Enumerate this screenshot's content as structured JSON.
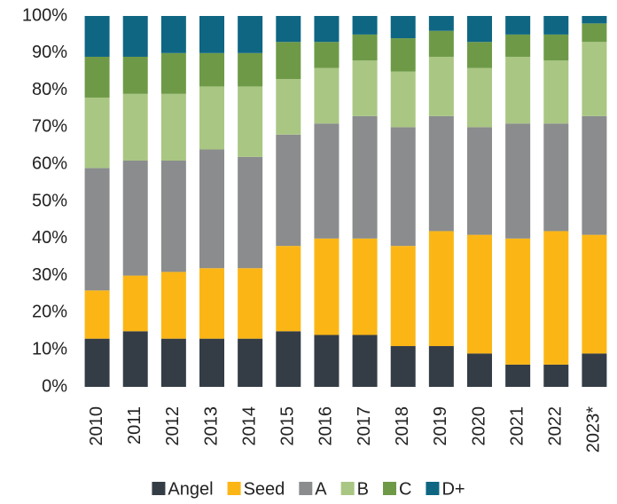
{
  "chart_data": {
    "type": "stacked_bar_100",
    "categories": [
      "2010",
      "2011",
      "2012",
      "2013",
      "2014",
      "2015",
      "2016",
      "2017",
      "2018",
      "2019",
      "2020",
      "2021",
      "2022",
      "2023*"
    ],
    "series": [
      {
        "name": "Angel",
        "color": "#343d46",
        "values": [
          13,
          15,
          13,
          13,
          13,
          15,
          14,
          14,
          11,
          11,
          9,
          6,
          6,
          9
        ]
      },
      {
        "name": "Seed",
        "color": "#fbb616",
        "values": [
          13,
          15,
          18,
          19,
          19,
          23,
          26,
          26,
          27,
          31,
          32,
          34,
          36,
          32
        ]
      },
      {
        "name": "A",
        "color": "#8a8c8d",
        "values": [
          33,
          31,
          30,
          32,
          30,
          30,
          31,
          33,
          32,
          31,
          29,
          31,
          29,
          32
        ]
      },
      {
        "name": "B",
        "color": "#a9c683",
        "values": [
          19,
          18,
          18,
          17,
          19,
          15,
          15,
          15,
          15,
          16,
          16,
          18,
          17,
          20
        ]
      },
      {
        "name": "C",
        "color": "#6e9a47",
        "values": [
          11,
          10,
          11,
          9,
          9,
          10,
          7,
          7,
          9,
          7,
          7,
          6,
          7,
          5
        ]
      },
      {
        "name": "D+",
        "color": "#0e6683",
        "values": [
          11,
          11,
          10,
          10,
          10,
          7,
          7,
          5,
          6,
          4,
          7,
          5,
          5,
          2
        ]
      }
    ],
    "ylim": [
      0,
      100
    ],
    "yticks": [
      {
        "value": 0,
        "label": "0%"
      },
      {
        "value": 10,
        "label": "10%"
      },
      {
        "value": 20,
        "label": "20%"
      },
      {
        "value": 30,
        "label": "30%"
      },
      {
        "value": 40,
        "label": "40%"
      },
      {
        "value": 50,
        "label": "50%"
      },
      {
        "value": 60,
        "label": "60%"
      },
      {
        "value": 70,
        "label": "70%"
      },
      {
        "value": 80,
        "label": "80%"
      },
      {
        "value": 90,
        "label": "90%"
      },
      {
        "value": 100,
        "label": "100%"
      }
    ],
    "grid": false,
    "legend": "bottom"
  }
}
